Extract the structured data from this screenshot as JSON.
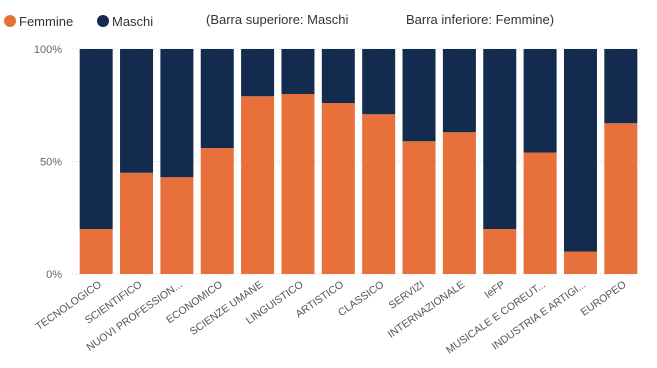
{
  "legend": {
    "items": [
      {
        "label": "Femmine",
        "color": "#E8703A"
      },
      {
        "label": "Maschi",
        "color": "#122B4F"
      }
    ]
  },
  "notes": {
    "top": "(Barra superiore: Maschi",
    "bottom": "Barra inferiore: Femmine)"
  },
  "chart_data": {
    "type": "bar",
    "stacked": true,
    "percent": true,
    "categories": [
      "TECNOLOGICO",
      "SCIENTIFICO",
      "NUOVI PROFESSION...",
      "ECONOMICO",
      "SCIENZE UMANE",
      "LINGUISTICO",
      "ARTISTICO",
      "CLASSICO",
      "SERVIZI",
      "INTERNAZIONALE",
      "IeFP",
      "MUSICALE E COREUT...",
      "INDUSTRIA E ARTIGI...",
      "EUROPEO"
    ],
    "series": [
      {
        "name": "Femmine",
        "color": "#E8703A",
        "values": [
          20,
          45,
          43,
          56,
          79,
          80,
          76,
          71,
          59,
          63,
          20,
          54,
          10,
          67
        ]
      },
      {
        "name": "Maschi",
        "color": "#122B4F",
        "values": [
          80,
          55,
          57,
          44,
          21,
          20,
          24,
          29,
          41,
          37,
          80,
          46,
          90,
          33
        ]
      }
    ],
    "ylim": [
      0,
      100
    ],
    "yticks": [
      "0%",
      "50%",
      "100%"
    ],
    "grid": true,
    "legend_position": "top-left"
  }
}
